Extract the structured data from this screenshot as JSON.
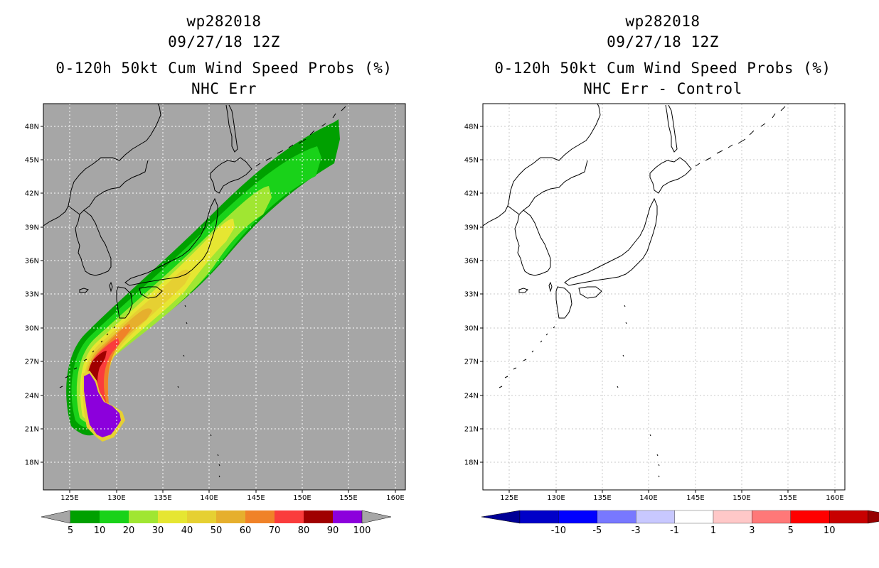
{
  "left_panel": {
    "storm_id": "wp282018",
    "datetime": "09/27/18 12Z",
    "title": "0-120h 50kt Cum Wind Speed Probs (%)",
    "subtitle": "NHC Err",
    "background": "#a6a6a6",
    "colorbar": {
      "colors": [
        "#00a000",
        "#19d219",
        "#a0e632",
        "#e6e632",
        "#e6d032",
        "#e6af2d",
        "#f08228",
        "#fa3c3c",
        "#a00000",
        "#8c00dc"
      ],
      "labels": [
        "5",
        "10",
        "20",
        "30",
        "40",
        "50",
        "60",
        "70",
        "80",
        "90",
        "100"
      ]
    }
  },
  "right_panel": {
    "storm_id": "wp282018",
    "datetime": "09/27/18 12Z",
    "title": "0-120h 50kt Cum Wind Speed Probs (%)",
    "subtitle": "NHC Err - Control",
    "background": "#ffffff",
    "colorbar": {
      "colors": [
        "#0000c8",
        "#0000ff",
        "#7878ff",
        "#c8c8ff",
        "#ffffff",
        "#ffc8c8",
        "#ff7878",
        "#ff0000",
        "#c80000"
      ],
      "under_color": "#000096",
      "over_color": "#960000",
      "labels": [
        "-10",
        "-5",
        "-3",
        "-1",
        "1",
        "3",
        "5",
        "10"
      ]
    }
  },
  "axes": {
    "lon_labels": [
      "125E",
      "130E",
      "135E",
      "140E",
      "145E",
      "150E",
      "155E",
      "160E"
    ],
    "lat_labels": [
      "48N",
      "45N",
      "42N",
      "39N",
      "36N",
      "33N",
      "30N",
      "27N",
      "24N",
      "21N",
      "18N"
    ]
  }
}
